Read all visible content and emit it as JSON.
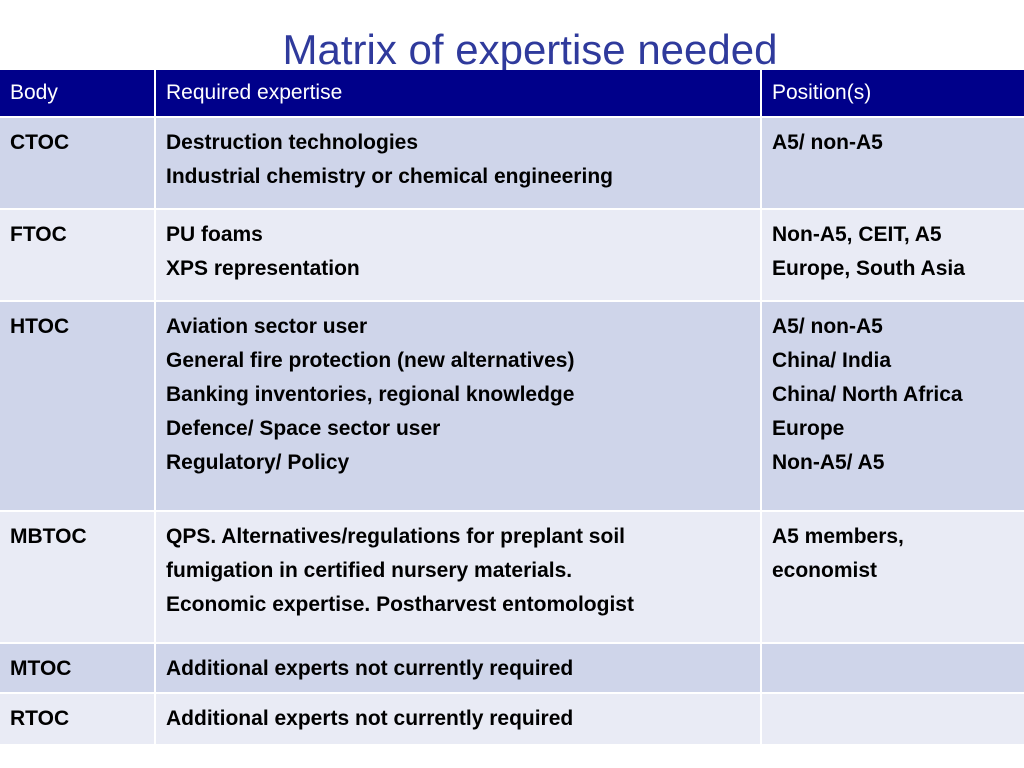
{
  "title": "Matrix of expertise needed",
  "table": {
    "header": [
      "Body",
      "Required expertise",
      "Position(s)"
    ],
    "rows": [
      [
        "CTOC",
        [
          "Destruction technologies",
          "Industrial chemistry or chemical engineering"
        ],
        [
          "A5/ non-A5"
        ]
      ],
      [
        "FTOC",
        [
          "PU foams",
          "XPS representation"
        ],
        [
          "Non-A5, CEIT, A5",
          "Europe, South Asia"
        ]
      ],
      [
        "HTOC",
        [
          "Aviation sector user",
          "General fire protection (new alternatives)",
          "Banking inventories, regional knowledge",
          "Defence/ Space sector user",
          "Regulatory/ Policy"
        ],
        [
          "A5/ non-A5",
          "China/ India",
          "China/ North Africa",
          "Europe",
          "Non-A5/ A5"
        ]
      ],
      [
        "MBTOC",
        [
          "QPS. Alternatives/regulations for preplant soil",
          "fumigation in certified nursery materials.",
          "Economic expertise. Postharvest entomologist"
        ],
        [
          "A5 members,",
          "economist"
        ]
      ],
      [
        "MTOC",
        [
          "Additional experts not currently required"
        ],
        []
      ],
      [
        "RTOC",
        [
          "Additional experts not currently required"
        ],
        []
      ]
    ]
  }
}
